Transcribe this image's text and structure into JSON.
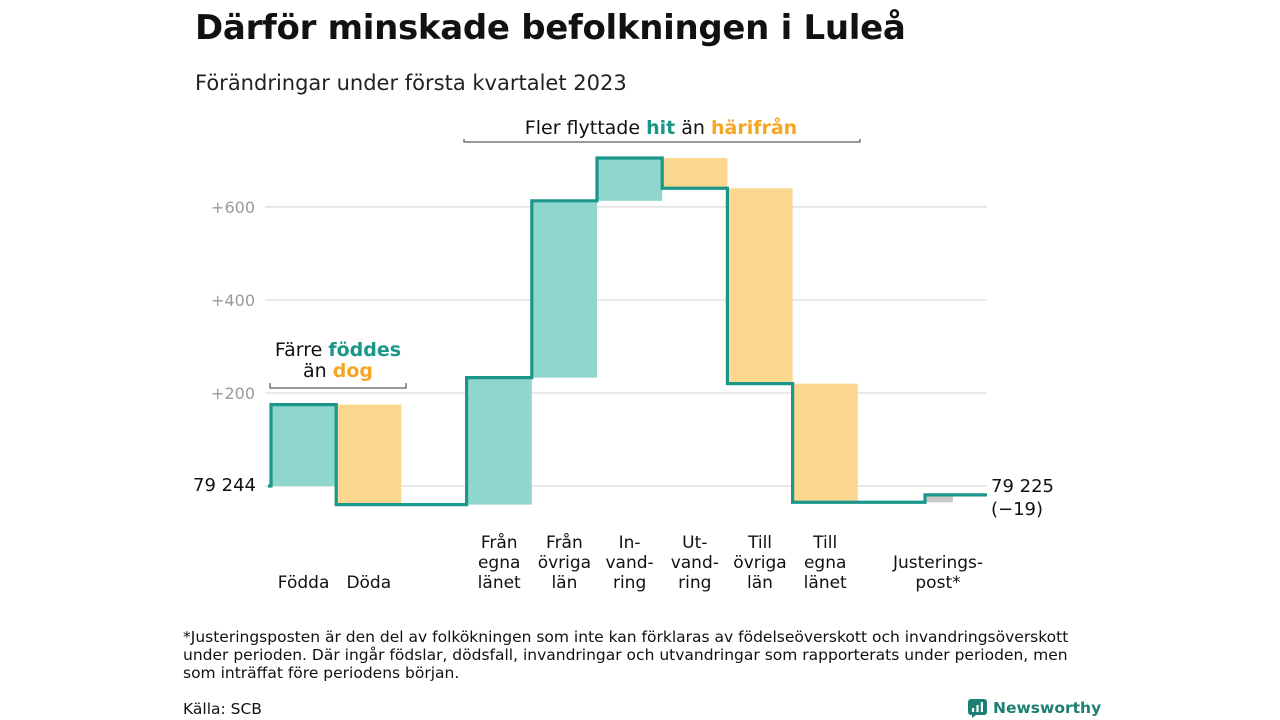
{
  "title": "Därför minskade befolkningen i Luleå",
  "subtitle": "Förändringar under första kvartalet 2023",
  "footnote": "*Justeringsposten är den del av folkökningen som inte kan förklaras av födelseöverskott och invandringsöverskott under perioden. Där ingår födslar, dödsfall, invandringar och utvandringar som rapporterats under perioden, men som inträffat före periodens början.",
  "source": "Källa: SCB",
  "brand": "Newsworthy",
  "colors": {
    "increase": "#8fd6cc",
    "decrease": "#fbd78f",
    "adjustment": "#c9c9c9",
    "line": "#1a968a",
    "hit": "#1a968a",
    "harifran": "#f5a623",
    "grid": "#d9d9d9",
    "tick": "#9a9a9a"
  },
  "chart_data": {
    "type": "waterfall",
    "start_label": "79 244",
    "end_label": "79 225",
    "end_change": "(−19)",
    "yticks": [
      {
        "value": 200,
        "label": "+200"
      },
      {
        "value": 400,
        "label": "+400"
      },
      {
        "value": 600,
        "label": "+600"
      }
    ],
    "ylim": [
      -60,
      720
    ],
    "steps": [
      {
        "category": [
          "Födda"
        ],
        "value": 175,
        "kind": "increase"
      },
      {
        "category": [
          "Döda"
        ],
        "value": -215,
        "kind": "decrease"
      },
      {
        "category": [
          ""
        ],
        "value": 0,
        "kind": "gap"
      },
      {
        "category": [
          "Från",
          "egna",
          "länet"
        ],
        "value": 273,
        "kind": "increase"
      },
      {
        "category": [
          "Från",
          "övriga",
          "län"
        ],
        "value": 380,
        "kind": "increase"
      },
      {
        "category": [
          "In-",
          "vand-",
          "ring"
        ],
        "value": 92,
        "kind": "increase"
      },
      {
        "category": [
          "Ut-",
          "vand-",
          "ring"
        ],
        "value": -65,
        "kind": "decrease"
      },
      {
        "category": [
          "Till",
          "övriga",
          "län"
        ],
        "value": -420,
        "kind": "decrease"
      },
      {
        "category": [
          "Till",
          "egna",
          "länet"
        ],
        "value": -255,
        "kind": "decrease"
      },
      {
        "category": [
          ""
        ],
        "value": 0,
        "kind": "gap"
      },
      {
        "category": [
          "Justerings-",
          "post*"
        ],
        "value": 16,
        "kind": "adjustment"
      }
    ],
    "annotations": {
      "birth_death": {
        "line1": "Färre ",
        "highlight1": "föddes",
        "line2": "än ",
        "highlight2": "dog"
      },
      "migration": {
        "prefix": "Fler flyttade ",
        "highlight1": "hit",
        "middle": " än ",
        "highlight2": "härifrån"
      }
    }
  }
}
